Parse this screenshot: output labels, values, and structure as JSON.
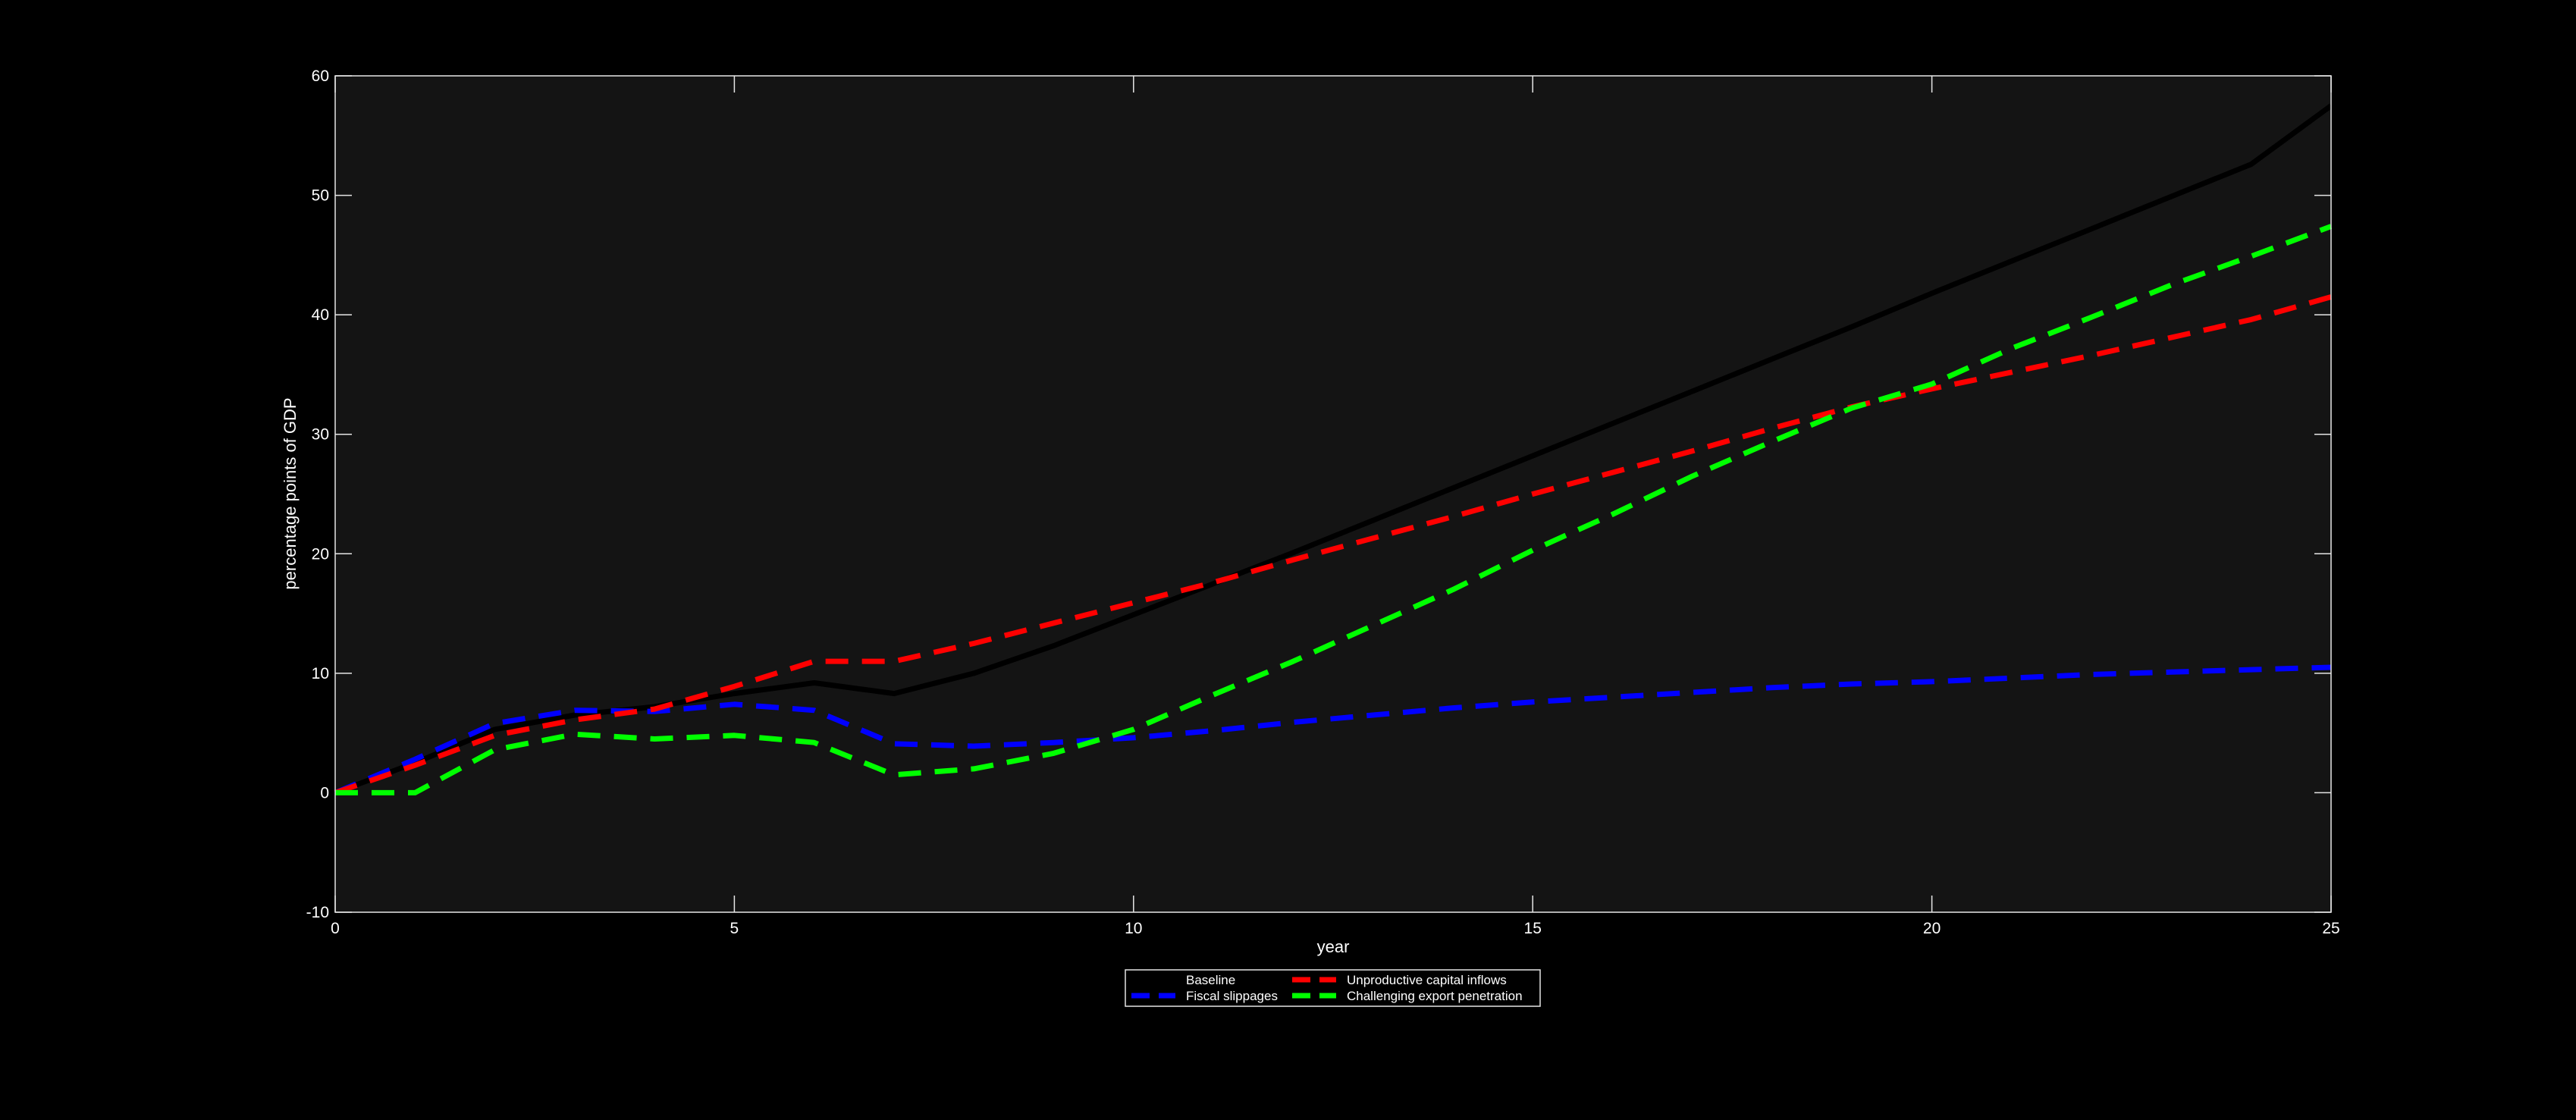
{
  "chart_data": {
    "type": "line",
    "title": "",
    "xlabel": "year",
    "ylabel": "percentage points of GDP",
    "xlim": [
      0,
      25
    ],
    "ylim": [
      -10,
      60
    ],
    "xticks": [
      0,
      5,
      10,
      15,
      20,
      25
    ],
    "yticks": [
      -10,
      0,
      10,
      20,
      30,
      40,
      50,
      60
    ],
    "grid": false,
    "legend_position": "bottom-center",
    "background": "#141414",
    "x": [
      0,
      1,
      2,
      3,
      4,
      5,
      6,
      7,
      8,
      9,
      10,
      11,
      12,
      13,
      14,
      15,
      16,
      17,
      18,
      19,
      20,
      21,
      22,
      23,
      24,
      25
    ],
    "series": [
      {
        "name": "Baseline",
        "color": "#000000",
        "style": "solid",
        "values": [
          0,
          2.5,
          5.3,
          6.5,
          7.2,
          8.3,
          9.2,
          8.3,
          10.0,
          12.3,
          14.9,
          17.5,
          20.1,
          22.8,
          25.5,
          28.2,
          30.9,
          33.6,
          36.3,
          39.0,
          41.8,
          44.5,
          47.2,
          49.9,
          52.6,
          57.5
        ]
      },
      {
        "name": "Fiscal slippages",
        "color": "#0000ff",
        "style": "dashed",
        "values": [
          0,
          2.8,
          5.8,
          6.9,
          6.8,
          7.4,
          6.9,
          4.1,
          3.9,
          4.2,
          4.6,
          5.2,
          5.9,
          6.5,
          7.1,
          7.6,
          8.0,
          8.4,
          8.8,
          9.1,
          9.3,
          9.6,
          9.9,
          10.1,
          10.3,
          10.5
        ]
      },
      {
        "name": "Unproductive capital inflows",
        "color": "#ff0000",
        "style": "dashed",
        "values": [
          0,
          2.3,
          4.8,
          6.1,
          7.0,
          8.9,
          11.0,
          11.0,
          12.5,
          14.2,
          15.9,
          17.6,
          19.5,
          21.3,
          23.1,
          25.0,
          26.8,
          28.6,
          30.5,
          32.3,
          33.8,
          35.2,
          36.6,
          38.1,
          39.6,
          41.5
        ]
      },
      {
        "name": "Challenging export penetration",
        "color": "#00ff00",
        "style": "dashed",
        "values": [
          0,
          0,
          3.6,
          4.9,
          4.5,
          4.8,
          4.2,
          1.5,
          2.0,
          3.3,
          5.3,
          8.2,
          11.0,
          14.0,
          17.0,
          20.3,
          23.3,
          26.5,
          29.4,
          32.2,
          34.2,
          37.2,
          39.8,
          42.5,
          44.9,
          47.4
        ]
      }
    ]
  }
}
